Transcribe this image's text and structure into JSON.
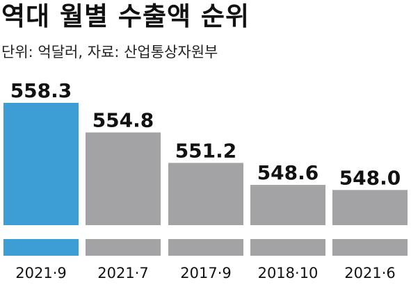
{
  "title": "역대 월별 수출액 순위",
  "subtitle": "단위: 억달러, 자료: 산업통상자원부",
  "colors": {
    "highlight": "#3d9ed6",
    "bar": "#a3a3a5",
    "text": "#111111"
  },
  "chart_data": {
    "type": "bar",
    "categories": [
      "2021·9",
      "2021·7",
      "2017·9",
      "2018·10",
      "2021·6"
    ],
    "values": [
      558.3,
      554.8,
      551.2,
      548.6,
      548.0
    ],
    "value_labels": [
      "558.3",
      "554.8",
      "551.2",
      "548.6",
      "548.0"
    ],
    "highlight_index": 0,
    "axis_break": true,
    "title": "역대 월별 수출액 순위",
    "ylabel": "",
    "xlabel": "",
    "grid": false,
    "legend": "none"
  }
}
